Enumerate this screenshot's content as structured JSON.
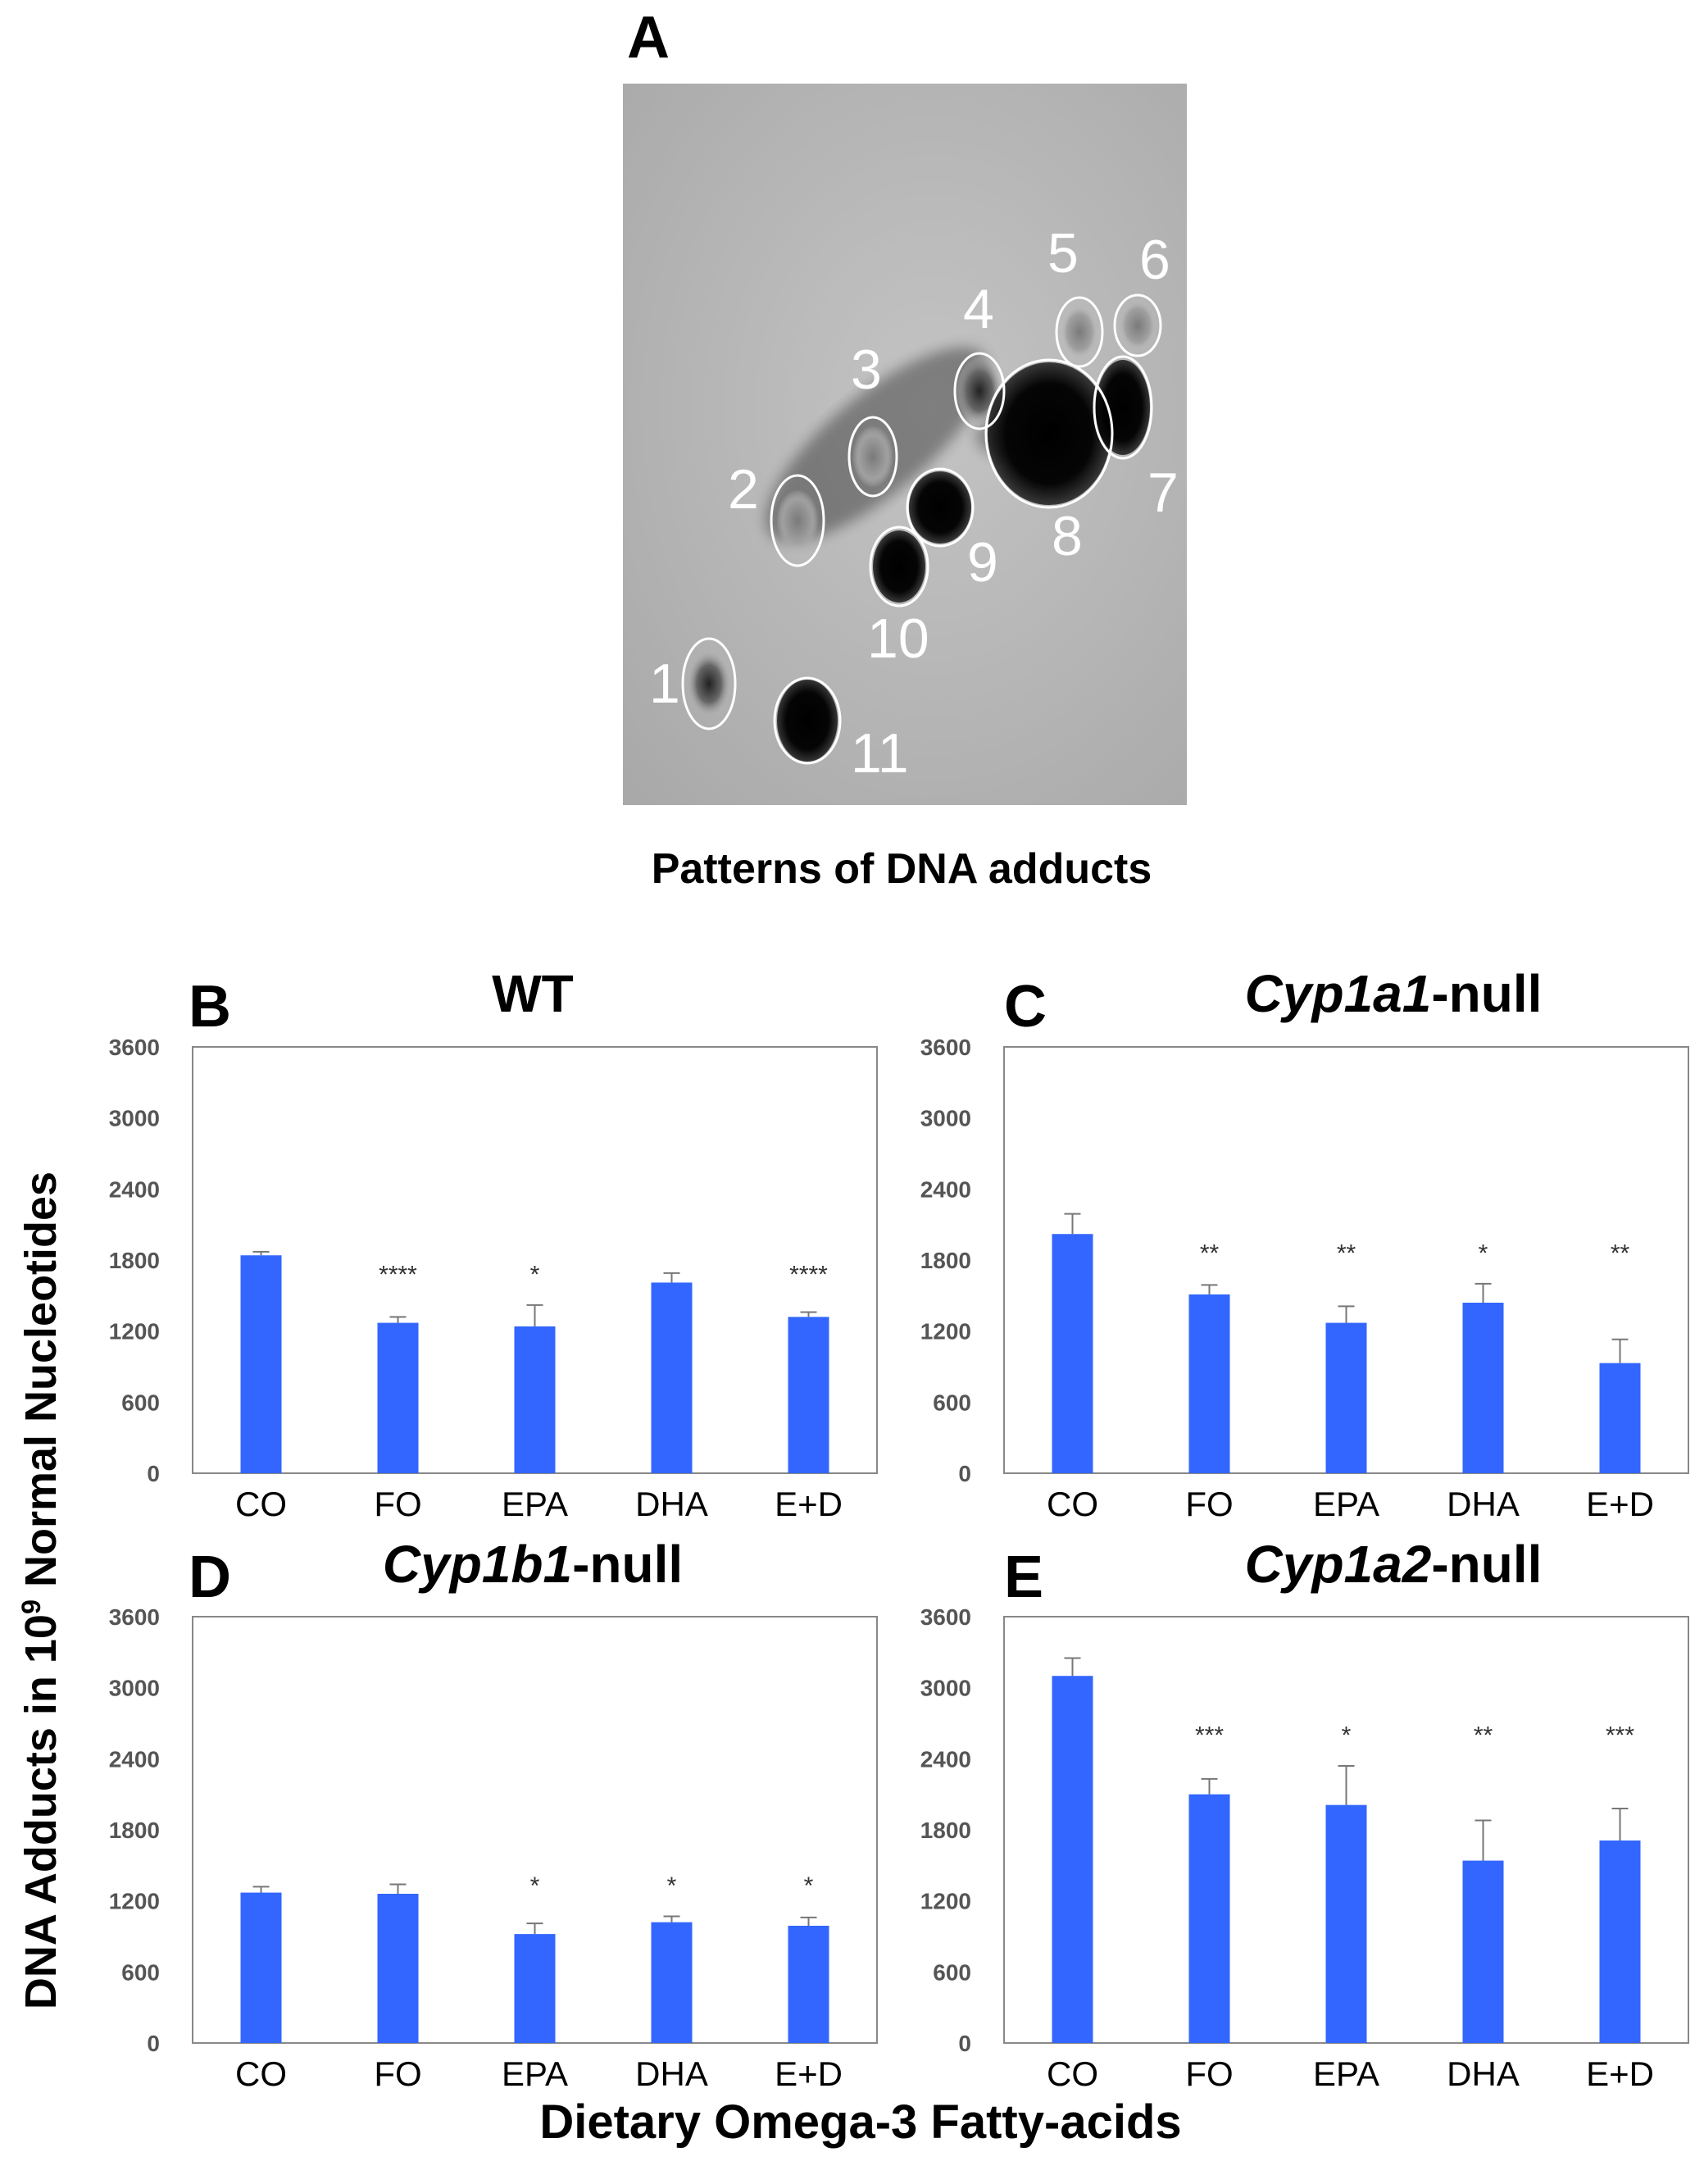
{
  "panel_a": {
    "letter": "A",
    "caption": "Patterns of DNA adducts",
    "spot_labels": [
      "1",
      "2",
      "3",
      "4",
      "5",
      "6",
      "7",
      "8",
      "9",
      "10",
      "11"
    ]
  },
  "axes": {
    "ylabel_pre": "DNA Adducts in 10",
    "ylabel_sup": "9",
    "ylabel_post": " Normal Nucleotides",
    "xlabel": "Dietary Omega-3 Fatty-acids"
  },
  "colors": {
    "bar": "#3366ff",
    "axis": "#888888"
  },
  "chart_data": [
    {
      "type": "bar",
      "letter": "B",
      "title": "WT",
      "title_italic": "",
      "categories": [
        "CO",
        "FO",
        "EPA",
        "DHA",
        "E+D"
      ],
      "values": [
        1840,
        1270,
        1240,
        1610,
        1320
      ],
      "errors": [
        30,
        50,
        180,
        80,
        40
      ],
      "significance": [
        "",
        "****",
        "*",
        "",
        "****"
      ],
      "ylim": [
        0,
        3600
      ],
      "yticks": [
        "0",
        "600",
        "1200",
        "1800",
        "2400",
        "3000",
        "3600"
      ]
    },
    {
      "type": "bar",
      "letter": "C",
      "title": "-null",
      "title_italic": "Cyp1a1",
      "categories": [
        "CO",
        "FO",
        "EPA",
        "DHA",
        "E+D"
      ],
      "values": [
        2020,
        1510,
        1270,
        1440,
        930
      ],
      "errors": [
        170,
        80,
        140,
        160,
        200
      ],
      "significance": [
        "",
        "**",
        "**",
        "*",
        "**"
      ],
      "ylim": [
        0,
        3600
      ],
      "yticks": [
        "0",
        "600",
        "1200",
        "1800",
        "2400",
        "3000",
        "3600"
      ]
    },
    {
      "type": "bar",
      "letter": "D",
      "title": "-null",
      "title_italic": "Cyp1b1",
      "categories": [
        "CO",
        "FO",
        "EPA",
        "DHA",
        "E+D"
      ],
      "values": [
        1270,
        1260,
        920,
        1020,
        990
      ],
      "errors": [
        50,
        80,
        90,
        50,
        70
      ],
      "significance": [
        "",
        "",
        "*",
        "*",
        "*"
      ],
      "ylim": [
        0,
        3600
      ],
      "yticks": [
        "0",
        "600",
        "1200",
        "1800",
        "2400",
        "3000",
        "3600"
      ]
    },
    {
      "type": "bar",
      "letter": "E",
      "title": "-null",
      "title_italic": "Cyp1a2",
      "categories": [
        "CO",
        "FO",
        "EPA",
        "DHA",
        "E+D"
      ],
      "values": [
        3100,
        2100,
        2010,
        1540,
        1710
      ],
      "errors": [
        150,
        130,
        330,
        340,
        270
      ],
      "significance": [
        "",
        "***",
        "*",
        "**",
        "***"
      ],
      "ylim": [
        0,
        3600
      ],
      "yticks": [
        "0",
        "600",
        "1200",
        "1800",
        "2400",
        "3000",
        "3600"
      ]
    }
  ]
}
